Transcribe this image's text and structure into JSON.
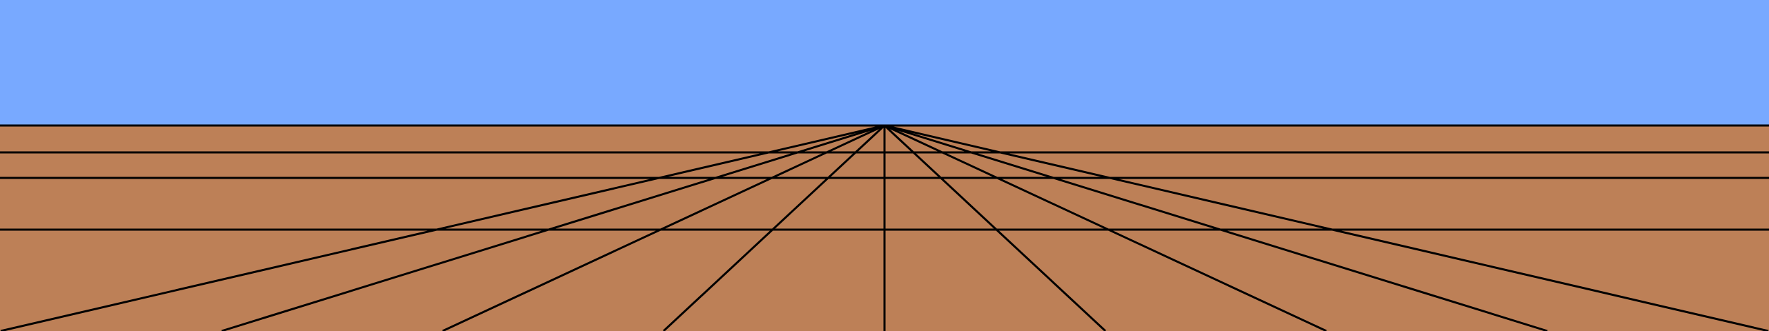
{
  "scene": {
    "sky_color": "#78a9ff",
    "ground_color": "#bd8057",
    "line_color": "#000000",
    "ground_line_count": 4,
    "converging_line_count": 9
  }
}
